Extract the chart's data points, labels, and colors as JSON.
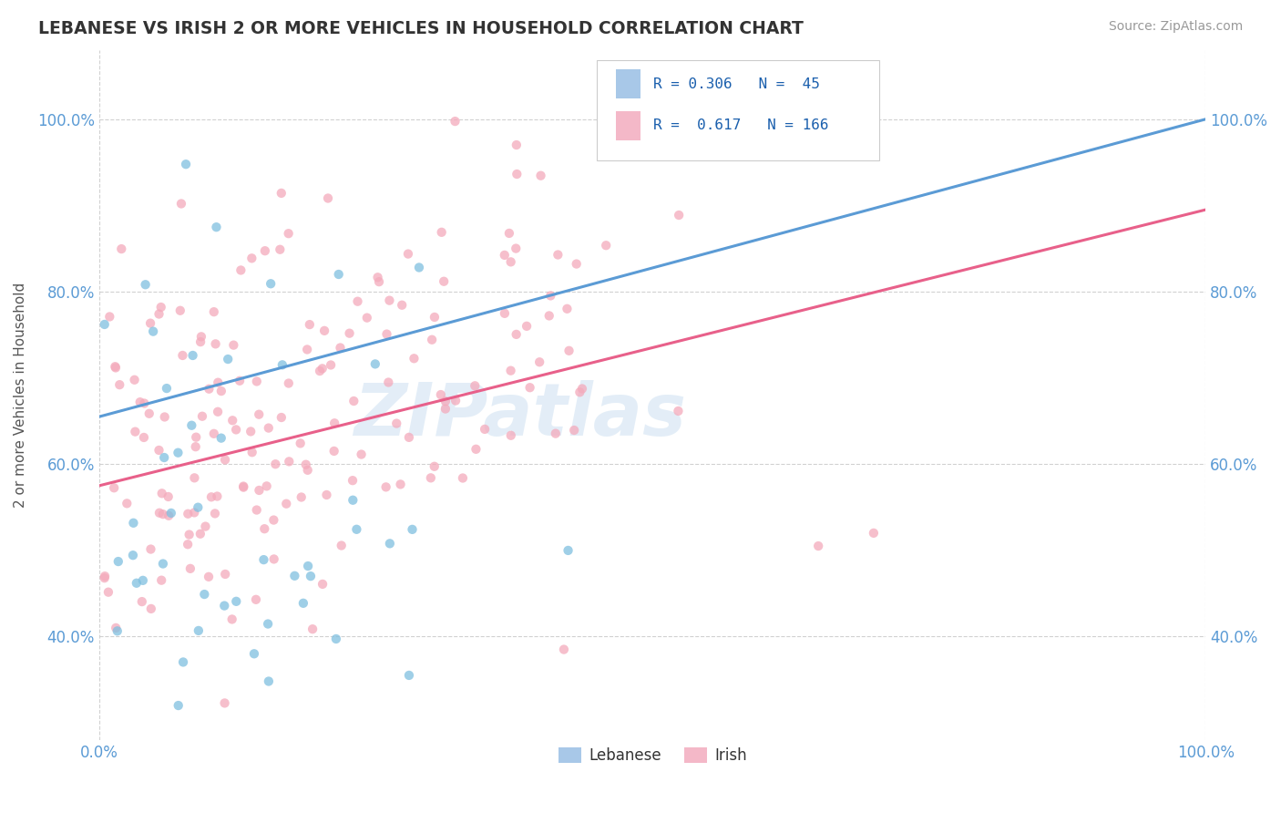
{
  "title": "LEBANESE VS IRISH 2 OR MORE VEHICLES IN HOUSEHOLD CORRELATION CHART",
  "source_text": "Source: ZipAtlas.com",
  "ylabel": "2 or more Vehicles in Household",
  "xlim": [
    0.0,
    1.0
  ],
  "ylim": [
    0.28,
    1.08
  ],
  "x_ticks": [
    0.0,
    1.0
  ],
  "x_tick_labels": [
    "0.0%",
    "100.0%"
  ],
  "y_ticks": [
    0.4,
    0.6,
    0.8,
    1.0
  ],
  "y_tick_labels": [
    "40.0%",
    "60.0%",
    "80.0%",
    "100.0%"
  ],
  "blue_color": "#5b9bd5",
  "pink_color": "#e8608a",
  "blue_marker_color": "#7fbfdf",
  "pink_marker_color": "#f4aabb",
  "R_lebanese": 0.306,
  "N_lebanese": 45,
  "R_irish": 0.617,
  "N_irish": 166,
  "watermark": "ZIPatlas",
  "watermark_color": "#c8ddf0",
  "legend_blue_color": "#a8c8e8",
  "legend_pink_color": "#f4b8c8",
  "blue_line_y0": 0.655,
  "blue_line_y1": 1.0,
  "pink_line_y0": 0.575,
  "pink_line_y1": 0.895
}
